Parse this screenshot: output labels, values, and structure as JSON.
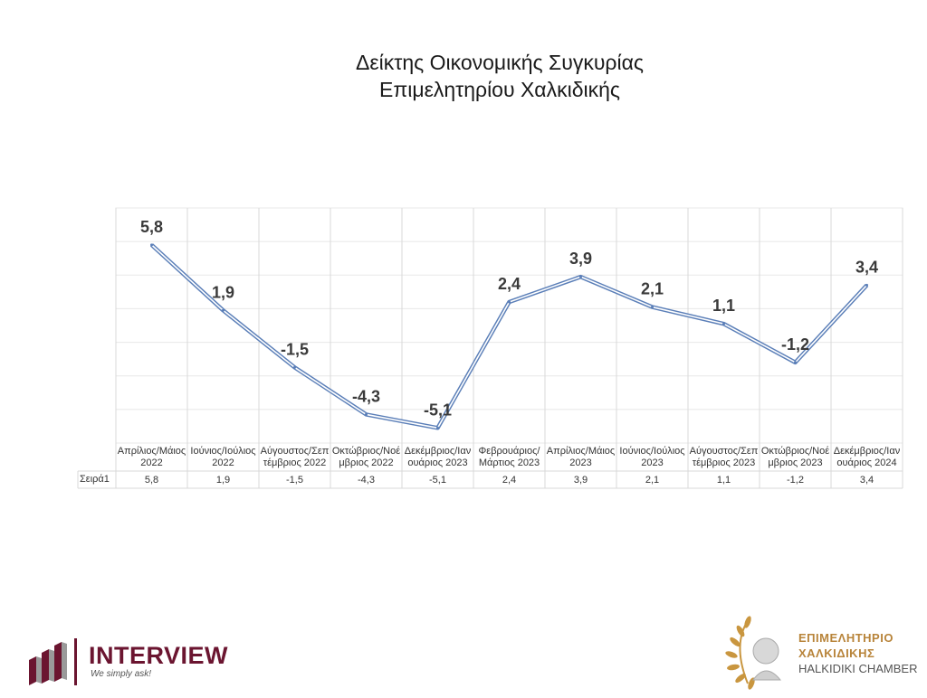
{
  "chart_data": {
    "type": "line",
    "title": [
      "Δείκτης Οικονομικής Συγκυρίας",
      "Επιμελητηρίου Χαλκιδικής"
    ],
    "categories": [
      [
        "Απρίλιος/Μάιος",
        "2022"
      ],
      [
        "Ιούνιος/Ιούλιος",
        "2022"
      ],
      [
        "Αύγουστος/Σεπ",
        "τέμβριος 2022"
      ],
      [
        "Οκτώβριος/Νοέ",
        "μβριος 2022"
      ],
      [
        "Δεκέμβριος/Ιαν",
        "ουάριος 2023"
      ],
      [
        "Φεβρουάριος/",
        "Μάρτιος 2023"
      ],
      [
        "Απρίλιος/Μάιος",
        "2023"
      ],
      [
        "Ιούνιος/Ιούλιος",
        "2023"
      ],
      [
        "Αύγουστος/Σεπ",
        "τέμβριος 2023"
      ],
      [
        "Οκτώβριος/Νοέ",
        "μβριος 2023"
      ],
      [
        "Δεκέμβριος/Ιαν",
        "ουάριος 2024"
      ]
    ],
    "series": [
      {
        "name": "Σειρά1",
        "values": [
          5.8,
          1.9,
          -1.5,
          -4.3,
          -5.1,
          2.4,
          3.9,
          2.1,
          1.1,
          -1.2,
          3.4
        ],
        "labels": [
          "5,8",
          "1,9",
          "-1,5",
          "-4,3",
          "-5,1",
          "2,4",
          "3,9",
          "2,1",
          "1,1",
          "-1,2",
          "3,4"
        ],
        "table_values": [
          "5,8",
          "1,9",
          "-1,5",
          "-4,3",
          "-5,1",
          "2,4",
          "3,9",
          "2,1",
          "1,1",
          "-1,2",
          "3,4"
        ],
        "color": "#5b7fb8"
      }
    ],
    "ylim": [
      -6,
      8
    ],
    "grid": true,
    "legend": "data-table"
  },
  "logos": {
    "left": {
      "brand": "INTERVIEW",
      "tagline": "We simply ask!"
    },
    "right": {
      "line1": "ΕΠΙΜΕΛΗΤΗΡΙΟ",
      "line2": "ΧΑΛΚΙΔΙΚΗΣ",
      "line3": "HALKIDIKI CHAMBER"
    }
  }
}
